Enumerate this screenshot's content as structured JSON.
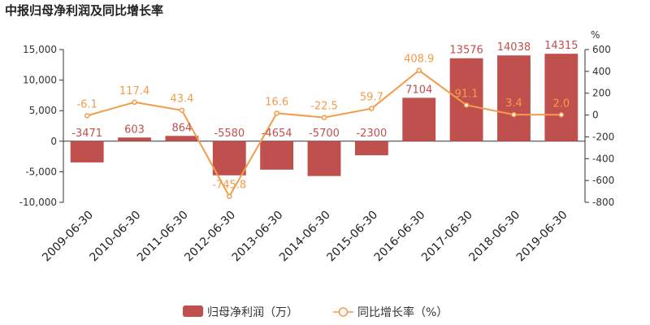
{
  "chart_data": {
    "type": "bar",
    "title": "中报归母净利润及同比增长率",
    "categories": [
      "2009-06-30",
      "2010-06-30",
      "2011-06-30",
      "2012-06-30",
      "2013-06-30",
      "2014-06-30",
      "2015-06-30",
      "2016-06-30",
      "2017-06-30",
      "2018-06-30",
      "2019-06-30"
    ],
    "series": [
      {
        "name": "归母净利润（万）",
        "type": "bar",
        "axis": "left",
        "color": "#c0504d",
        "values": [
          -3471,
          603,
          864,
          -5580,
          -4654,
          -5700,
          -2300,
          7104,
          13576,
          14038,
          14315
        ],
        "labels": [
          "-3471",
          "603",
          "864",
          "-5580",
          "-4654",
          "-5700",
          "-2300",
          "7104",
          "13576",
          "14038",
          "14315"
        ]
      },
      {
        "name": "同比增长率（%）",
        "type": "line",
        "axis": "right",
        "color": "#f39c4a",
        "values": [
          -6.1,
          117.4,
          43.4,
          -745.8,
          16.6,
          -22.5,
          59.7,
          408.9,
          91.1,
          3.4,
          2.0
        ],
        "labels": [
          "-6.1",
          "117.4",
          "43.4",
          "-745.8",
          "16.6",
          "-22.5",
          "59.7",
          "408.9",
          "91.1",
          "3.4",
          "2.0"
        ]
      }
    ],
    "y_left": {
      "ylim": [
        -10000,
        15000
      ],
      "ticks": [
        -10000,
        -5000,
        0,
        5000,
        10000,
        15000
      ],
      "tick_labels": [
        "-10,000",
        "-5,000",
        "0",
        "5,000",
        "10,000",
        "15,000"
      ]
    },
    "y_right": {
      "unit": "%",
      "ylim": [
        -800,
        600
      ],
      "ticks": [
        -800,
        -600,
        -400,
        -200,
        0,
        200,
        400,
        600
      ],
      "tick_labels": [
        "-800",
        "-600",
        "-400",
        "-200",
        "0",
        "200",
        "400",
        "600"
      ]
    },
    "legend": {
      "position": "bottom-center",
      "items": [
        "归母净利润（万）",
        "同比增长率（%）"
      ]
    },
    "grid": false
  }
}
